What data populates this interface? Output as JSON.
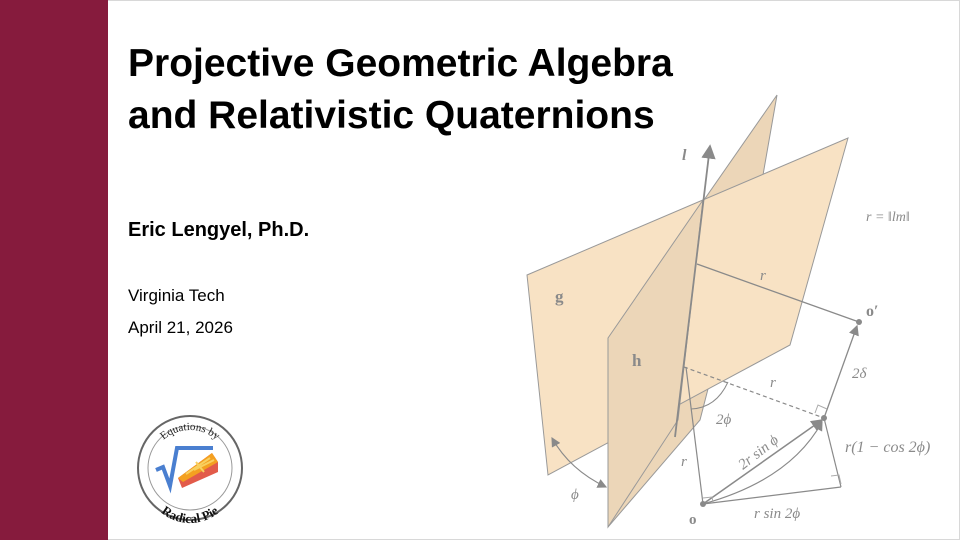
{
  "slide": {
    "title_line1": "Projective Geometric Algebra",
    "title_line2": "and Relativistic Quaternions",
    "author": "Eric Lengyel, Ph.D.",
    "institution": "Virginia Tech",
    "date": "April 21, 2026"
  },
  "logo": {
    "top_text": "Equations by",
    "bottom_text": "Radical Pie"
  },
  "diagram": {
    "labels": {
      "line": "l",
      "formula": "r = ‖lm‖",
      "plane_g": "g",
      "plane_h": "h",
      "r_top": "r",
      "o_prime": "o′",
      "two_delta": "2δ",
      "r_dashed": "r",
      "two_phi": "2ϕ",
      "r_side": "r",
      "chord": "2r sin ϕ",
      "one_minus_cos": "r(1 − cos 2ϕ)",
      "phi": "ϕ",
      "origin": "o",
      "r_sin": "r sin 2ϕ"
    }
  },
  "colors": {
    "sidebar": "#861b3d",
    "plane_g": "#f8e2c4",
    "plane_h": "#ecd6b8",
    "line": "#8a8a8a"
  }
}
